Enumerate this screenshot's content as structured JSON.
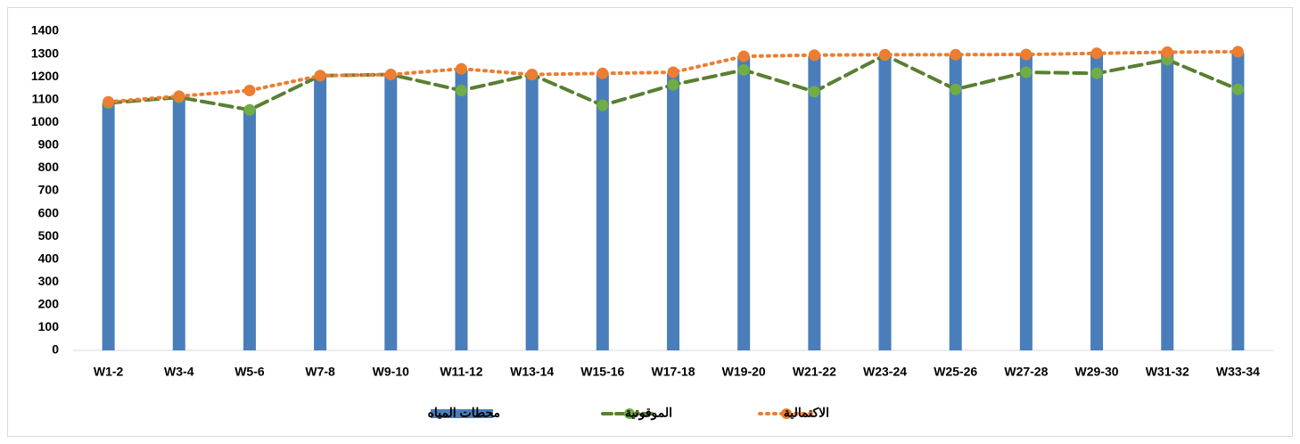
{
  "chart_data": {
    "type": "bar_line",
    "categories": [
      "W1-2",
      "W3-4",
      "W5-6",
      "W7-8",
      "W9-10",
      "W11-12",
      "W13-14",
      "W15-16",
      "W17-18",
      "W19-20",
      "W21-22",
      "W23-24",
      "W25-26",
      "W27-28",
      "W29-30",
      "W31-32",
      "W33-34"
    ],
    "series": [
      {
        "name": "محطات المياه",
        "type": "bar",
        "color": "#4a7ebb",
        "values": [
          1085,
          1110,
          1060,
          1200,
          1205,
          1230,
          1205,
          1210,
          1215,
          1290,
          1290,
          1295,
          1295,
          1295,
          1300,
          1305,
          1305
        ]
      },
      {
        "name": "الموقوتية",
        "type": "line",
        "style": "dashed",
        "color": "#5a7f32",
        "marker_color": "#70ad47",
        "values": [
          1085,
          1110,
          1055,
          1205,
          1210,
          1140,
          1210,
          1075,
          1165,
          1230,
          1135,
          1295,
          1145,
          1220,
          1215,
          1275,
          1145
        ]
      },
      {
        "name": "الاكتمالية",
        "type": "line",
        "style": "dotted",
        "color": "#ed7d31",
        "marker_color": "#ed7d31",
        "values": [
          1090,
          1115,
          1140,
          1205,
          1210,
          1235,
          1210,
          1215,
          1220,
          1290,
          1295,
          1297,
          1297,
          1298,
          1303,
          1308,
          1310
        ]
      }
    ],
    "ylim": [
      0,
      1400
    ],
    "yticks": [
      0,
      100,
      200,
      300,
      400,
      500,
      600,
      700,
      800,
      900,
      1000,
      1100,
      1200,
      1300,
      1400
    ],
    "grid": false,
    "legend": "bottom"
  }
}
